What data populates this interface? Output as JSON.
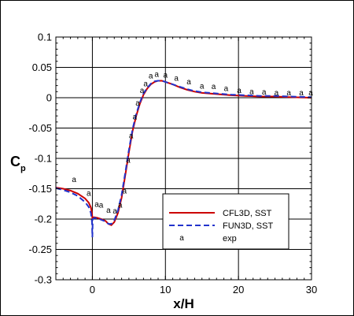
{
  "chart_data": {
    "type": "line",
    "title": "",
    "xlabel": "x/H",
    "ylabel_main": "C",
    "ylabel_sub": "p",
    "xlim": [
      -5,
      30
    ],
    "ylim": [
      -0.3,
      0.1
    ],
    "xticks": [
      0,
      10,
      20,
      30
    ],
    "yticks": [
      -0.3,
      -0.25,
      -0.2,
      -0.15,
      -0.1,
      -0.05,
      0,
      0.05,
      0.1
    ],
    "xtick_labels": [
      "0",
      "10",
      "20",
      "30"
    ],
    "ytick_labels": [
      "-0.3",
      "-0.25",
      "-0.2",
      "-0.15",
      "-0.1",
      "-0.05",
      "0",
      "0.05",
      "0.1"
    ],
    "grid": true,
    "legend_position": "lower-right",
    "series": [
      {
        "name": "CFL3D, SST",
        "style": "solid",
        "color": "#cc0000",
        "x": [
          -5,
          -4,
          -3,
          -2,
          -1,
          -0.5,
          -0.2,
          -0.05,
          0,
          0.05,
          0.3,
          0.7,
          1.2,
          1.8,
          2.2,
          2.6,
          3.0,
          3.5,
          4.0,
          4.5,
          5.0,
          5.5,
          6.0,
          6.5,
          7.0,
          7.5,
          8.0,
          8.5,
          9.0,
          9.5,
          10,
          11,
          12,
          13,
          14,
          15,
          17,
          19,
          21,
          23,
          25,
          27,
          30
        ],
        "y": [
          -0.148,
          -0.15,
          -0.153,
          -0.158,
          -0.166,
          -0.173,
          -0.181,
          -0.19,
          -0.2,
          -0.197,
          -0.197,
          -0.198,
          -0.2,
          -0.203,
          -0.208,
          -0.21,
          -0.205,
          -0.19,
          -0.165,
          -0.128,
          -0.09,
          -0.055,
          -0.03,
          -0.01,
          0.005,
          0.015,
          0.022,
          0.026,
          0.028,
          0.028,
          0.026,
          0.022,
          0.017,
          0.013,
          0.01,
          0.008,
          0.006,
          0.004,
          0.003,
          0.002,
          0.002,
          0.001,
          0.0
        ]
      },
      {
        "name": "FUN3D, SST",
        "style": "dashed",
        "color": "#2233cc",
        "x": [
          -5,
          -4,
          -3,
          -2,
          -1,
          -0.5,
          -0.2,
          -0.05,
          0,
          0.05,
          0.3,
          0.7,
          1.2,
          1.8,
          2.2,
          2.6,
          3.0,
          3.5,
          4.0,
          4.5,
          5.0,
          5.5,
          6.0,
          6.5,
          7.0,
          7.5,
          8.0,
          8.5,
          9.0,
          9.5,
          10,
          11,
          12,
          13,
          14,
          15,
          17,
          19,
          21,
          23,
          25,
          27,
          30
        ],
        "y": [
          -0.149,
          -0.152,
          -0.156,
          -0.162,
          -0.172,
          -0.18,
          -0.19,
          -0.205,
          -0.23,
          -0.2,
          -0.198,
          -0.199,
          -0.201,
          -0.204,
          -0.208,
          -0.208,
          -0.202,
          -0.186,
          -0.16,
          -0.124,
          -0.086,
          -0.052,
          -0.027,
          -0.008,
          0.007,
          0.016,
          0.023,
          0.027,
          0.028,
          0.028,
          0.026,
          0.022,
          0.018,
          0.014,
          0.011,
          0.009,
          0.007,
          0.005,
          0.004,
          0.003,
          0.003,
          0.002,
          0.001
        ]
      },
      {
        "name": "exp",
        "style": "markers",
        "marker": "a",
        "color": "#000000",
        "x": [
          -2.5,
          -0.5,
          0.6,
          1.2,
          2.2,
          3.1,
          3.8,
          4.4,
          4.9,
          5.3,
          5.8,
          6.2,
          6.8,
          7.3,
          8.0,
          8.8,
          10.0,
          11.5,
          13.2,
          15.0,
          16.6,
          18.3,
          20.1,
          21.8,
          23.5,
          25.2,
          26.9,
          28.6,
          29.9
        ],
        "y": [
          -0.135,
          -0.158,
          -0.176,
          -0.177,
          -0.186,
          -0.187,
          -0.177,
          -0.154,
          -0.103,
          -0.063,
          -0.032,
          -0.009,
          0.012,
          0.023,
          0.036,
          0.038,
          0.037,
          0.032,
          0.026,
          0.019,
          0.018,
          0.015,
          0.012,
          0.01,
          0.009,
          0.008,
          0.008,
          0.008,
          0.008
        ]
      }
    ]
  }
}
